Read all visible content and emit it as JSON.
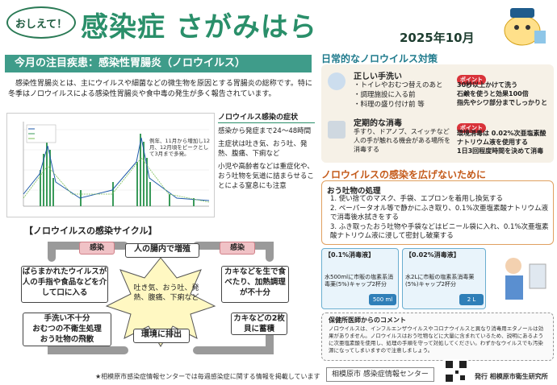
{
  "header": {
    "badge": "おしえて！",
    "title": "感染症 さがみはら",
    "date": "2025年10月"
  },
  "left": {
    "section_title": "今月の注目疾患：感染性胃腸炎（ノロウイルス）",
    "intro": "　感染性胃腸炎とは、主にウイルスや細菌などの微生物を原因とする胃腸炎の総称です。特に冬季はノロウイルスによる感染性胃腸炎や食中毒の発生が多く報告されています。",
    "chart_caption": "例年、11月から増加し12月、12月頃をピークとして3月まで多発。",
    "symptoms_title": "ノロウイルス感染の症状",
    "symptoms": [
      "感染から発症まで24〜48時間",
      "主症状は吐き気、おう吐、発熱、腹痛、下痢など",
      "小児や高齢者などは重症化や、おう吐物を気道に詰まらせることによる窒息にも注意"
    ]
  },
  "cycle": {
    "title": "【ノロウイルスの感染サイクル】",
    "infect1": "感染",
    "infect2": "感染",
    "gut": "人の腸内で増殖",
    "center": "吐き気、おう吐、発熱、腹痛、下痢など",
    "left_box": "ばらまかれたウイルスが人の手指や食品などを介して口に入る",
    "right_box": "カキなどを生で食べたり、加熱調理が不十分",
    "excrete": "環境に排出",
    "oyster": "カキなどの2枚貝に蓄積",
    "bottom_left": "手洗い不十分\nおむつの不衛生処理\nおう吐物の飛散"
  },
  "right": {
    "daily_title": "日常的なノロウイルス対策",
    "handwash_title": "正しい手洗い",
    "handwash_items": [
      "・トイレやおむつ替えのあと",
      "・調理施設に入る前",
      "・料理の盛り付け前 等"
    ],
    "point_label": "ポイント",
    "handwash_point": "30秒以上かけて洗う\n石鹸を使うと効果100倍\n指先やシワ部分までしっかりと",
    "disinfect_title": "定期的な消毒",
    "disinfect_text": "手すり、ドアノブ、スイッチなど人の手が触れる機会がある場所を消毒する",
    "disinfect_point": "環境消毒は 0.02%次亜塩素酸ナトリウム液を使用する\n1日3回程度時間を決めて消毒",
    "spread_title": "ノロウイルスの感染を広げないために",
    "vomit_title": "おう吐物の処理",
    "vomit_steps": [
      "1. 使い捨てのマスク、手袋、エプロンを着用し換気する",
      "2. ペーパータオル等で静かにふき取り、0.1%次亜塩素酸ナトリウム液で消毒後水拭きをする",
      "3. ふき取ったおう吐物や手袋などはビニール袋に入れ、0.1%次亜塩素酸ナトリウム液に浸して密封し破棄する"
    ],
    "sol1_title": "【0.1%消毒液】",
    "sol1_text": "水500mlに市販の塩素系消毒薬(5%)キャップ2杯分",
    "sol1_bottle": "500 ml",
    "sol2_title": "【0.02%消毒液】",
    "sol2_text": "水2Lに市販の塩素系消毒薬(5%)キャップ2杯分",
    "sol2_bottle": "2 L",
    "comment_title": "保健所医師からのコメント",
    "comment_text": "ノロウイルスは、インフルエンザウイルスやコロナウイルスと異なり消毒用エタノールは効果がありません。ノロウイルスはおう吐物などに大量に含まれているため、説明にあるように次亜塩素酸を使用し、処理の手順を守って対処してください。わずかなウイルスでも汚染源になってしまいますので注意しましょう。"
  },
  "footer": {
    "note": "★相模原市感染症情報センターでは毎週感染症に関する情報を掲載しています",
    "link": "相模原市 感染症情報センター",
    "publisher": "発行 相模原市衛生研究所"
  },
  "colors": {
    "brand": "#2a8f6a",
    "teal": "#3f9c8a",
    "orange": "#c45a1a",
    "red": "#d9333a"
  }
}
